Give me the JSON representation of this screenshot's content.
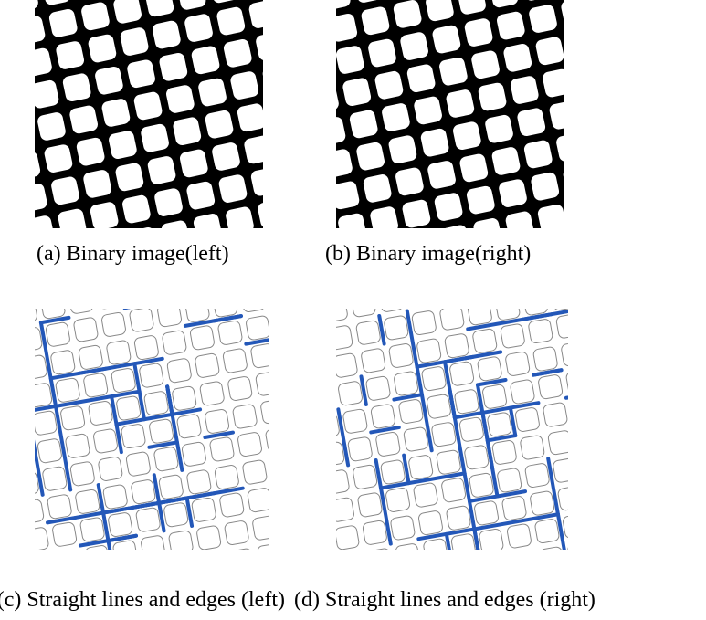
{
  "figure": {
    "panels": [
      {
        "caption": "(a) Binary image(left)"
      },
      {
        "caption": "(b) Binary image(right)"
      },
      {
        "caption": "(c) Straight lines and edges (left)"
      },
      {
        "caption": "(d) Straight lines and edges (right)"
      }
    ]
  }
}
